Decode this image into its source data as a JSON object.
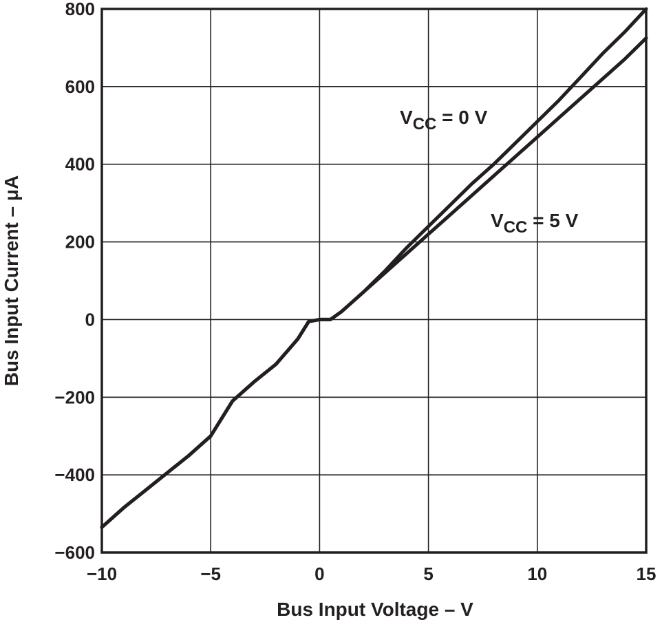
{
  "chart_data": {
    "type": "line",
    "xlabel": "Bus Input Voltage – V",
    "ylabel": "Bus Input Current – μA",
    "xlim": [
      -10,
      15
    ],
    "ylim": [
      -600,
      800
    ],
    "x_ticks": [
      "−10",
      "−5",
      "0",
      "5",
      "10",
      "15"
    ],
    "y_ticks": [
      "800",
      "600",
      "400",
      "200",
      "0",
      "−200",
      "−400",
      "−600"
    ],
    "grid": true,
    "series": [
      {
        "name": "VCC = 0 V",
        "x": [
          -10,
          -9,
          -8,
          -7,
          -6,
          -5,
          -4,
          -3,
          -2,
          -1,
          -0.5,
          0,
          0.5,
          1,
          2,
          3,
          4,
          5,
          6,
          7,
          8,
          9,
          10,
          11,
          12,
          13,
          14,
          15
        ],
        "y": [
          -535,
          -485,
          -440,
          -395,
          -350,
          -300,
          -210,
          -160,
          -115,
          -50,
          -5,
          0,
          0,
          20,
          70,
          125,
          185,
          240,
          295,
          350,
          400,
          455,
          510,
          565,
          625,
          685,
          740,
          800
        ]
      },
      {
        "name": "VCC = 5 V",
        "x": [
          -10,
          -9,
          -8,
          -7,
          -6,
          -5,
          -4,
          -3,
          -2,
          -1,
          -0.5,
          0,
          0.5,
          1,
          2,
          3,
          4,
          5,
          6,
          7,
          8,
          9,
          10,
          11,
          12,
          13,
          14,
          15
        ],
        "y": [
          -535,
          -485,
          -440,
          -395,
          -350,
          -300,
          -210,
          -160,
          -115,
          -50,
          -5,
          0,
          0,
          20,
          70,
          120,
          170,
          220,
          270,
          320,
          370,
          420,
          470,
          520,
          570,
          620,
          670,
          725
        ]
      }
    ],
    "annotations": [
      {
        "main": "V",
        "sub": "CC",
        "rest": " = 0 V"
      },
      {
        "main": "V",
        "sub": "CC",
        "rest": " = 5 V"
      }
    ]
  }
}
